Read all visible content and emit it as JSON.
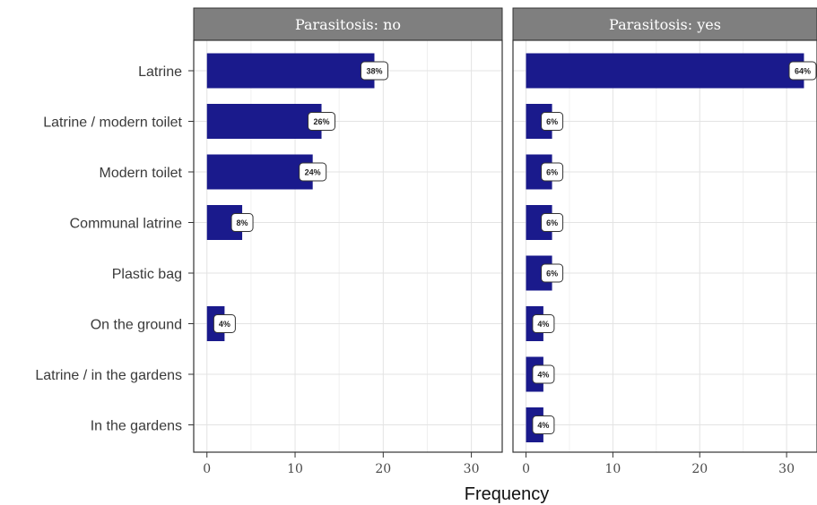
{
  "chart_data": {
    "type": "bar",
    "orientation": "horizontal",
    "categories": [
      "Latrine",
      "Latrine / modern toilet",
      "Modern toilet",
      "Communal latrine",
      "Plastic bag",
      "On the ground",
      "Latrine / in the gardens",
      "In the gardens"
    ],
    "panels": [
      {
        "strip": "Parasitosis: no",
        "values": [
          19,
          13,
          12,
          4,
          0,
          2,
          0,
          0
        ],
        "labels": [
          "38%",
          "26%",
          "24%",
          "8%",
          "",
          "4%",
          "",
          ""
        ]
      },
      {
        "strip": "Parasitosis: yes",
        "values": [
          32,
          3,
          3,
          3,
          3,
          2,
          2,
          2
        ],
        "labels": [
          "64%",
          "6%",
          "6%",
          "6%",
          "6%",
          "4%",
          "4%",
          "4%"
        ]
      }
    ],
    "xlabel": "Frequency",
    "xlim": [
      -1.5,
      33.5
    ],
    "xticks": [
      0,
      10,
      20,
      30
    ],
    "grid": true,
    "bar_color": "#1a1a8c",
    "strip_color": "#7f7f7f"
  }
}
